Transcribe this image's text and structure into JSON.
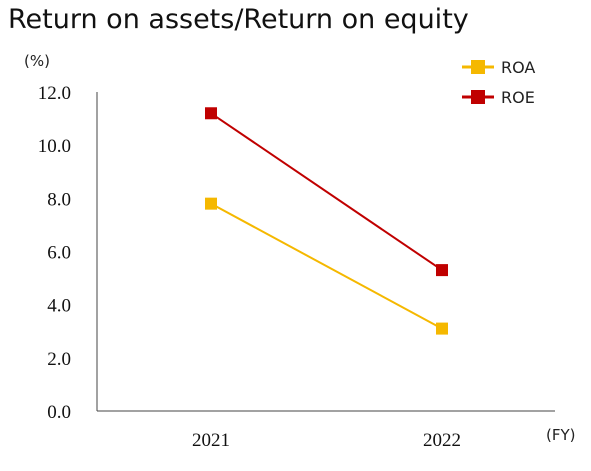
{
  "chart_data": {
    "type": "line",
    "title": "Return on assets/Return on equity",
    "ylabel": "(%)",
    "xlabel": "(FY)",
    "categories": [
      "2021",
      "2022"
    ],
    "ylim": [
      0,
      12
    ],
    "yticks": [
      "0.0",
      "2.0",
      "4.0",
      "6.0",
      "8.0",
      "10.0",
      "12.0"
    ],
    "grid": false,
    "legend_position": "top-right",
    "series": [
      {
        "name": "ROA",
        "values": [
          7.8,
          3.1
        ],
        "color": "#f5b800"
      },
      {
        "name": "ROE",
        "values": [
          11.2,
          5.3
        ],
        "color": "#c00000"
      }
    ]
  }
}
